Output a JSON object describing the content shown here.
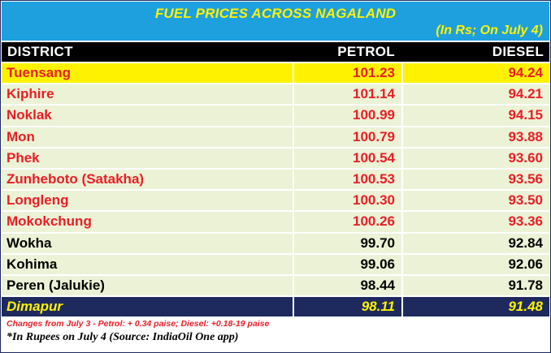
{
  "title": "FUEL PRICES ACROSS NAGALAND",
  "subtitle": "(In Rs; On July 4)",
  "columns": {
    "district": "DISTRICT",
    "petrol": "PETROL",
    "diesel": "DIESEL"
  },
  "rows": [
    {
      "district": "Tuensang",
      "petrol": "101.23",
      "diesel": "94.24",
      "style": "highlight"
    },
    {
      "district": "Kiphire",
      "petrol": "101.14",
      "diesel": "94.21",
      "style": "red"
    },
    {
      "district": "Noklak",
      "petrol": "100.99",
      "diesel": "94.15",
      "style": "red"
    },
    {
      "district": "Mon",
      "petrol": "100.79",
      "diesel": "93.88",
      "style": "red"
    },
    {
      "district": "Phek",
      "petrol": "100.54",
      "diesel": "93.60",
      "style": "red"
    },
    {
      "district": "Zunheboto (Satakha)",
      "petrol": "100.53",
      "diesel": "93.56",
      "style": "red"
    },
    {
      "district": "Longleng",
      "petrol": "100.30",
      "diesel": "93.50",
      "style": "red"
    },
    {
      "district": "Mokokchung",
      "petrol": "100.26",
      "diesel": "93.36",
      "style": "red"
    },
    {
      "district": "Wokha",
      "petrol": "99.70",
      "diesel": "92.84",
      "style": "black"
    },
    {
      "district": "Kohima",
      "petrol": "99.06",
      "diesel": "92.06",
      "style": "black"
    },
    {
      "district": "Peren (Jalukie)",
      "petrol": "98.44",
      "diesel": "91.78",
      "style": "black"
    },
    {
      "district": "Dimapur",
      "petrol": "98.11",
      "diesel": "91.48",
      "style": "navy"
    }
  ],
  "footnotes": {
    "changes": "Changes from July 3 -  Petrol: + 0.34 paise; Diesel: +0.18-19 paise",
    "source": "*In Rupees on July 4 (Source: IndiaOil One app)"
  },
  "colors": {
    "header_bg": "#1ea0de",
    "title_text": "#fff200",
    "highlight_bg": "#fff200",
    "red_text": "#e81e25",
    "row_bg": "#ecf2d6",
    "last_row_bg": "#1e2a5e"
  }
}
